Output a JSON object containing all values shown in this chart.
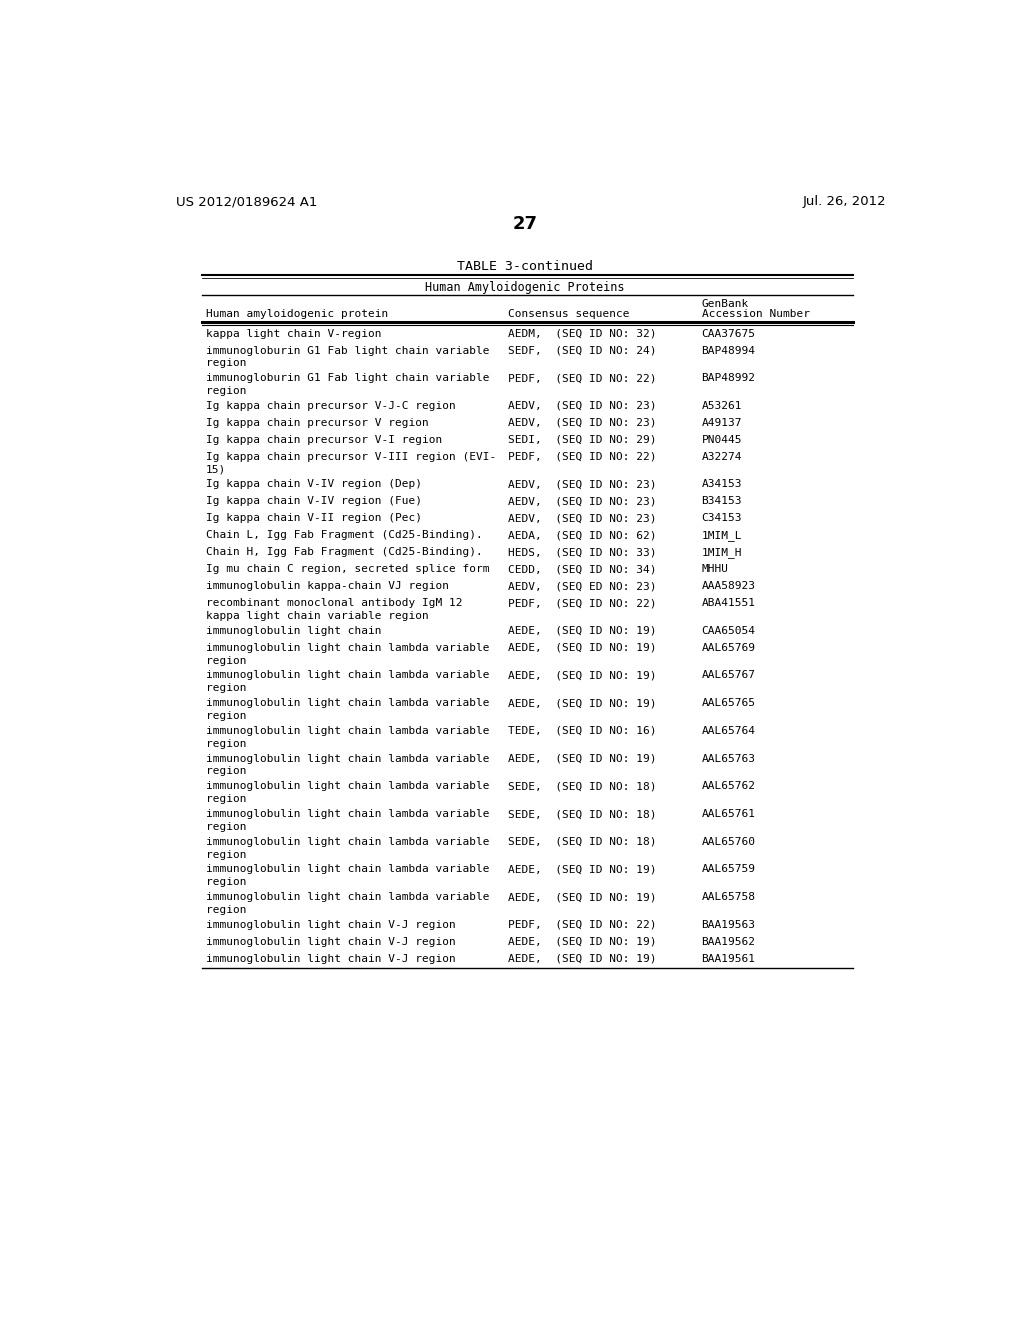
{
  "patent_number": "US 2012/0189624 A1",
  "patent_date": "Jul. 26, 2012",
  "page_number": "27",
  "table_title": "TABLE 3-continued",
  "table_subtitle": "Human Amyloidogenic Proteins",
  "col1_header": "Human amyloidogenic protein",
  "col2_header": "Consensus sequence",
  "col3_header_line1": "GenBank",
  "col3_header_line2": "Accession Number",
  "rows": [
    [
      "kappa light chain V-region",
      "AEDM,  (SEQ ID NO: 32)",
      "CAA37675"
    ],
    [
      "immunogloburin G1 Fab light chain variable\nregion",
      "SEDF,  (SEQ ID NO: 24)",
      "BAP48994"
    ],
    [
      "immunogloburin G1 Fab light chain variable\nregion",
      "PEDF,  (SEQ ID NO: 22)",
      "BAP48992"
    ],
    [
      "Ig kappa chain precursor V-J-C region",
      "AEDV,  (SEQ ID NO: 23)",
      "A53261"
    ],
    [
      "Ig kappa chain precursor V region",
      "AEDV,  (SEQ ID NO: 23)",
      "A49137"
    ],
    [
      "Ig kappa chain precursor V-I region",
      "SEDI,  (SEQ ID NO: 29)",
      "PN0445"
    ],
    [
      "Ig kappa chain precursor V-III region (EVI-\n15)",
      "PEDF,  (SEQ ID NO: 22)",
      "A32274"
    ],
    [
      "Ig kappa chain V-IV region (Dep)",
      "AEDV,  (SEQ ID NO: 23)",
      "A34153"
    ],
    [
      "Ig kappa chain V-IV region (Fue)",
      "AEDV,  (SEQ ID NO: 23)",
      "B34153"
    ],
    [
      "Ig kappa chain V-II region (Pec)",
      "AEDV,  (SEQ ID NO: 23)",
      "C34153"
    ],
    [
      "Chain L, Igg Fab Fragment (Cd25-Binding).",
      "AEDA,  (SEQ ID NO: 62)",
      "1MIM_L"
    ],
    [
      "Chain H, Igg Fab Fragment (Cd25-Binding).",
      "HEDS,  (SEQ ID NO: 33)",
      "1MIM_H"
    ],
    [
      "Ig mu chain C region, secreted splice form",
      "CEDD,  (SEQ ID NO: 34)",
      "MHHU"
    ],
    [
      "immunoglobulin kappa-chain VJ region",
      "AEDV,  (SEQ ED NO: 23)",
      "AAA58923"
    ],
    [
      "recombinant monoclonal antibody IgM 12\nkappa light chain variable region",
      "PEDF,  (SEQ ID NO: 22)",
      "ABA41551"
    ],
    [
      "immunoglobulin light chain",
      "AEDE,  (SEQ ID NO: 19)",
      "CAA65054"
    ],
    [
      "immunoglobulin light chain lambda variable\nregion",
      "AEDE,  (SEQ ID NO: 19)",
      "AAL65769"
    ],
    [
      "immunoglobulin light chain lambda variable\nregion",
      "AEDE,  (SEQ ID NO: 19)",
      "AAL65767"
    ],
    [
      "immunoglobulin light chain lambda variable\nregion",
      "AEDE,  (SEQ ID NO: 19)",
      "AAL65765"
    ],
    [
      "immunoglobulin light chain lambda variable\nregion",
      "TEDE,  (SEQ ID NO: 16)",
      "AAL65764"
    ],
    [
      "immunoglobulin light chain lambda variable\nregion",
      "AEDE,  (SEQ ID NO: 19)",
      "AAL65763"
    ],
    [
      "immunoglobulin light chain lambda variable\nregion",
      "SEDE,  (SEQ ID NO: 18)",
      "AAL65762"
    ],
    [
      "immunoglobulin light chain lambda variable\nregion",
      "SEDE,  (SEQ ID NO: 18)",
      "AAL65761"
    ],
    [
      "immunoglobulin light chain lambda variable\nregion",
      "SEDE,  (SEQ ID NO: 18)",
      "AAL65760"
    ],
    [
      "immunoglobulin light chain lambda variable\nregion",
      "AEDE,  (SEQ ID NO: 19)",
      "AAL65759"
    ],
    [
      "immunoglobulin light chain lambda variable\nregion",
      "AEDE,  (SEQ ID NO: 19)",
      "AAL65758"
    ],
    [
      "immunoglobulin light chain V-J region",
      "PEDF,  (SEQ ID NO: 22)",
      "BAA19563"
    ],
    [
      "immunoglobulin light chain V-J region",
      "AEDE,  (SEQ ID NO: 19)",
      "BAA19562"
    ],
    [
      "immunoglobulin light chain V-J region",
      "AEDE,  (SEQ ID NO: 19)",
      "BAA19561"
    ]
  ],
  "background_color": "#ffffff",
  "text_color": "#000000",
  "mono_font_size": 8.0,
  "header_font_size": 8.0,
  "title_font_size": 10.0
}
